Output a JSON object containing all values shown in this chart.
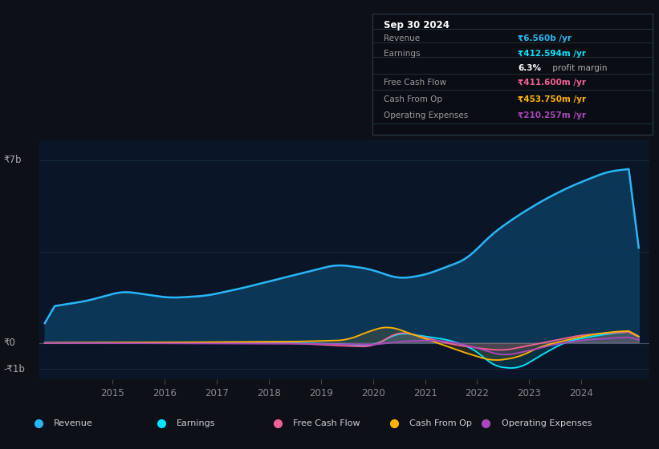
{
  "bg_color": "#0d1117",
  "plot_bg_color": "#0a1628",
  "ylim": [
    -1400000000.0,
    7800000000.0
  ],
  "xlim": [
    2013.6,
    2025.3
  ],
  "xticks": [
    2015,
    2016,
    2017,
    2018,
    2019,
    2020,
    2021,
    2022,
    2023,
    2024
  ],
  "revenue_color": "#29b6f6",
  "revenue_fill_color": "#0d3a5c",
  "earnings_color": "#00e5ff",
  "free_cash_flow_color": "#f06292",
  "cash_from_op_color": "#ffb300",
  "operating_expenses_color": "#ab47bc",
  "grid_color": "#1a2e45",
  "zero_line_color": "#3a5070",
  "y_labels": [
    {
      "value": 7000000000.0,
      "text": "₹7b"
    },
    {
      "value": 0,
      "text": "₹0"
    },
    {
      "value": -1000000000.0,
      "text": "-₹1b"
    }
  ],
  "info_box_title": "Sep 30 2024",
  "info_rows": [
    {
      "label": "Revenue",
      "value": "₹6.560b /yr",
      "vcolor": "#29b6f6",
      "sep_above": true,
      "indent": false
    },
    {
      "label": "Earnings",
      "value": "₹412.594m /yr",
      "vcolor": "#00e5ff",
      "sep_above": true,
      "indent": false
    },
    {
      "label": "",
      "value": "6.3% profit margin",
      "vcolor": "#cccccc",
      "sep_above": false,
      "indent": true
    },
    {
      "label": "Free Cash Flow",
      "value": "₹411.600m /yr",
      "vcolor": "#f06292",
      "sep_above": true,
      "indent": false
    },
    {
      "label": "Cash From Op",
      "value": "₹453.750m /yr",
      "vcolor": "#ffb300",
      "sep_above": true,
      "indent": false
    },
    {
      "label": "Operating Expenses",
      "value": "₹210.257m /yr",
      "vcolor": "#ab47bc",
      "sep_above": true,
      "indent": false
    }
  ],
  "legend": [
    {
      "label": "Revenue",
      "color": "#29b6f6"
    },
    {
      "label": "Earnings",
      "color": "#00e5ff"
    },
    {
      "label": "Free Cash Flow",
      "color": "#f06292"
    },
    {
      "label": "Cash From Op",
      "color": "#ffb300"
    },
    {
      "label": "Operating Expenses",
      "color": "#ab47bc"
    }
  ]
}
